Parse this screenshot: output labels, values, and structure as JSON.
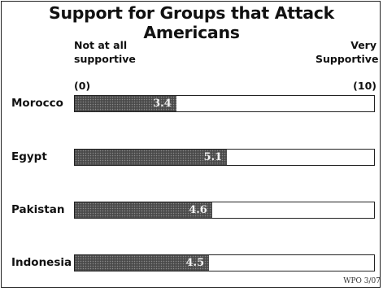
{
  "chart_data": {
    "type": "bar",
    "orientation": "horizontal",
    "title": "Support for Groups that Attack Americans",
    "scale_low_label": "Not at all supportive",
    "scale_high_label": "Very Supportive",
    "scale_low_value": "(0)",
    "scale_high_value": "(10)",
    "xlim": [
      0,
      10
    ],
    "categories": [
      "Morocco",
      "Egypt",
      "Pakistan",
      "Indonesia"
    ],
    "values": [
      3.4,
      5.1,
      4.6,
      4.5
    ],
    "value_labels": [
      "3.4",
      "5.1",
      "4.6",
      "4.5"
    ],
    "bar_color": "#555555",
    "credit": "WPO 3/07"
  }
}
